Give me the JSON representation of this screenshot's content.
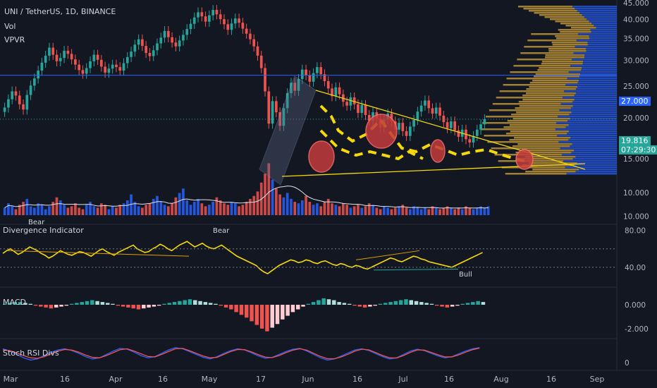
{
  "header": {
    "symbol_line": "UNI / TetherUS, 1D, BINANCE",
    "vol_label": "Vol",
    "vpvr_label": "VPVR"
  },
  "panes": {
    "divergence": {
      "title": "Divergence Indicator",
      "bear_label_1": "Bear",
      "bear_label_2": "Bear",
      "bull_label": "Bull"
    },
    "macd": {
      "title": "MACD"
    },
    "stoch": {
      "title": "Stoch RSI Divs"
    }
  },
  "price_tags": {
    "current_price": "19.816",
    "countdown": "07:29:30",
    "horizontal_level": "27.000"
  },
  "colors": {
    "background": "#131722",
    "up": "#26a69a",
    "down": "#ef5350",
    "vol_up": "#2962ff",
    "vol_down": "#ef5350",
    "vpvr_up": "#2962ff",
    "vpvr_down": "#c49a3a",
    "pattern": "#f5d90a",
    "level_line": "#2962ff",
    "current_tag": "#26a69a"
  },
  "chart_data": [
    {
      "type": "candlestick",
      "pane": "price",
      "y_scale": "log",
      "ylim": [
        13.5,
        45
      ],
      "y_ticks": [
        "45.000",
        "40.000",
        "35.000",
        "30.000",
        "25.000",
        "20.000",
        "15.000",
        "10.000"
      ],
      "x_ticks": [
        "Mar",
        "16",
        "Apr",
        "16",
        "May",
        "17",
        "Jun",
        "16",
        "Jul",
        "16",
        "Aug",
        "16",
        "Sep"
      ],
      "ohlc_summary": "daily UNI/USDT, Mar–late Jul",
      "closes": [
        21.5,
        22.8,
        24.1,
        23.4,
        22.0,
        21.2,
        23.5,
        25.1,
        26.4,
        27.9,
        29.5,
        31.0,
        32.8,
        31.2,
        29.8,
        30.5,
        32.1,
        31.4,
        30.2,
        29.1,
        28.0,
        27.3,
        28.4,
        29.8,
        31.2,
        30.1,
        28.7,
        27.5,
        28.3,
        29.1,
        28.6,
        27.9,
        29.4,
        30.7,
        31.9,
        33.5,
        34.8,
        33.2,
        31.6,
        30.9,
        32.2,
        33.8,
        35.2,
        36.9,
        35.3,
        34.0,
        33.1,
        34.5,
        35.9,
        37.4,
        38.8,
        40.6,
        42.1,
        40.9,
        39.4,
        41.2,
        42.8,
        41.5,
        40.1,
        38.7,
        37.2,
        38.9,
        40.3,
        39.1,
        37.5,
        36.2,
        34.8,
        33.1,
        31.0,
        28.4,
        24.1,
        19.2,
        22.5,
        20.8,
        18.9,
        21.4,
        23.8,
        25.6,
        24.2,
        26.3,
        28.1,
        27.0,
        25.8,
        27.4,
        28.6,
        27.2,
        25.9,
        24.6,
        23.3,
        24.8,
        23.6,
        22.4,
        21.8,
        23.1,
        22.0,
        20.7,
        21.9,
        20.4,
        19.6,
        20.8,
        19.9,
        18.7,
        19.8,
        20.6,
        19.5,
        18.4,
        19.3,
        18.2,
        17.6,
        18.8,
        19.7,
        20.9,
        21.8,
        22.6,
        21.4,
        20.6,
        21.5,
        20.3,
        19.4,
        18.6,
        19.5,
        18.3,
        17.5,
        18.4,
        17.2,
        16.8,
        17.6,
        18.4,
        19.1,
        19.8
      ],
      "horizontal_level": 27.0,
      "annotations": [
        "descending triangle (yellow trendlines)",
        "dashed wave path",
        "red ellipses"
      ]
    },
    {
      "type": "bar",
      "pane": "volume",
      "series": [
        {
          "name": "Vol",
          "values": [
            5,
            8,
            6,
            4,
            7,
            9,
            11,
            6,
            5,
            8,
            7,
            4,
            6,
            9,
            12,
            10,
            7,
            5,
            6,
            8,
            5,
            4,
            7,
            9,
            6,
            5,
            8,
            7,
            4,
            6,
            5,
            7,
            8,
            10,
            14,
            9,
            6,
            5,
            7,
            8,
            11,
            13,
            9,
            7,
            6,
            8,
            12,
            15,
            18,
            10,
            7,
            9,
            11,
            8,
            6,
            7,
            9,
            12,
            10,
            8,
            7,
            9,
            8,
            6,
            7,
            9,
            11,
            13,
            16,
            22,
            28,
            35,
            24,
            18,
            14,
            12,
            15,
            11,
            9,
            8,
            10,
            13,
            9,
            7,
            8,
            6,
            9,
            11,
            8,
            7,
            6,
            8,
            7,
            5,
            6,
            7,
            5,
            6,
            8,
            7,
            5,
            4,
            6,
            5,
            4,
            5,
            6,
            7,
            5,
            4,
            6,
            5,
            4,
            5,
            4,
            6,
            5,
            4,
            5,
            6,
            5,
            4,
            5,
            4,
            6,
            5,
            4,
            5,
            6,
            5,
            6
          ]
        }
      ]
    },
    {
      "type": "line",
      "pane": "divergence",
      "ylim": [
        20,
        85
      ],
      "y_ticks": [
        "80.00",
        "40.00"
      ],
      "series": [
        {
          "values": [
            55,
            58,
            60,
            57,
            54,
            56,
            59,
            62,
            60,
            58,
            55,
            53,
            50,
            52,
            55,
            58,
            56,
            54,
            53,
            55,
            57,
            56,
            54,
            52,
            55,
            58,
            60,
            57,
            55,
            53,
            56,
            58,
            60,
            62,
            64,
            60,
            58,
            56,
            57,
            60,
            62,
            65,
            63,
            60,
            58,
            61,
            64,
            66,
            68,
            65,
            62,
            64,
            66,
            63,
            61,
            60,
            62,
            64,
            61,
            58,
            55,
            52,
            50,
            48,
            46,
            44,
            42,
            38,
            35,
            33,
            36,
            39,
            42,
            44,
            46,
            48,
            47,
            45,
            46,
            48,
            47,
            45,
            44,
            46,
            47,
            45,
            43,
            42,
            44,
            43,
            41,
            40,
            42,
            41,
            39,
            38,
            40,
            42,
            44,
            46,
            48,
            50,
            49,
            47,
            46,
            48,
            50,
            52,
            51,
            49,
            48,
            46,
            45,
            44,
            43,
            42,
            41,
            40,
            42,
            44,
            46,
            48,
            50,
            52,
            54,
            56
          ]
        }
      ]
    },
    {
      "type": "bar",
      "pane": "macd",
      "y_ticks": [
        "0.000",
        "-2.000"
      ],
      "series": [
        {
          "name": "MACD histogram",
          "values": [
            0.1,
            0.2,
            0.3,
            0.3,
            0.2,
            0.1,
            -0.1,
            -0.2,
            -0.3,
            -0.4,
            -0.3,
            -0.2,
            -0.1,
            0.1,
            0.2,
            0.3,
            0.4,
            0.5,
            0.4,
            0.3,
            0.2,
            0.1,
            -0.1,
            -0.2,
            -0.3,
            -0.4,
            -0.5,
            -0.4,
            -0.3,
            -0.2,
            -0.1,
            0.1,
            0.2,
            0.3,
            0.4,
            0.5,
            0.6,
            0.5,
            0.4,
            0.3,
            0.2,
            0.1,
            -0.1,
            -0.3,
            -0.5,
            -0.8,
            -1.1,
            -1.4,
            -1.8,
            -2.2,
            -2.6,
            -2.9,
            -2.5,
            -2.1,
            -1.6,
            -1.2,
            -0.8,
            -0.5,
            -0.2,
            0.1,
            0.3,
            0.5,
            0.7,
            0.6,
            0.5,
            0.3,
            0.2,
            0.1,
            -0.1,
            -0.2,
            -0.3,
            -0.2,
            -0.1,
            0.1,
            0.2,
            0.3,
            0.4,
            0.5,
            0.6,
            0.5,
            0.4,
            0.3,
            0.2,
            0.1,
            -0.1,
            -0.2,
            -0.3,
            -0.2,
            -0.1,
            0.1,
            0.2,
            0.3,
            0.4,
            0.3
          ]
        }
      ]
    },
    {
      "type": "line",
      "pane": "stoch",
      "y_ticks": [
        "0"
      ],
      "series": [
        {
          "values": [
            80,
            70,
            55,
            40,
            30,
            35,
            50,
            65,
            75,
            80,
            72,
            60,
            45,
            35,
            40,
            55,
            70,
            82,
            78,
            65,
            50,
            40,
            45,
            60,
            75,
            85,
            80,
            68,
            55,
            42,
            35,
            45,
            60,
            72,
            80,
            75,
            62,
            48,
            38,
            42,
            55,
            68,
            78,
            82,
            70,
            55,
            40,
            30,
            35,
            48,
            62,
            75,
            80,
            72,
            58,
            45,
            35,
            40,
            55,
            70,
            78,
            72,
            60,
            48,
            40,
            45,
            58,
            70,
            80,
            85
          ]
        },
        {
          "values": [
            75,
            72,
            62,
            50,
            40,
            38,
            45,
            58,
            70,
            77,
            74,
            65,
            52,
            42,
            40,
            50,
            63,
            76,
            80,
            70,
            58,
            46,
            44,
            55,
            68,
            80,
            82,
            72,
            60,
            48,
            40,
            42,
            55,
            68,
            77,
            76,
            66,
            54,
            43,
            41,
            50,
            63,
            74,
            80,
            74,
            60,
            46,
            36,
            36,
            44,
            56,
            70,
            78,
            75,
            63,
            50,
            40,
            39,
            50,
            64,
            75,
            74,
            64,
            53,
            44,
            44,
            53,
            65,
            76,
            83
          ]
        }
      ]
    }
  ]
}
